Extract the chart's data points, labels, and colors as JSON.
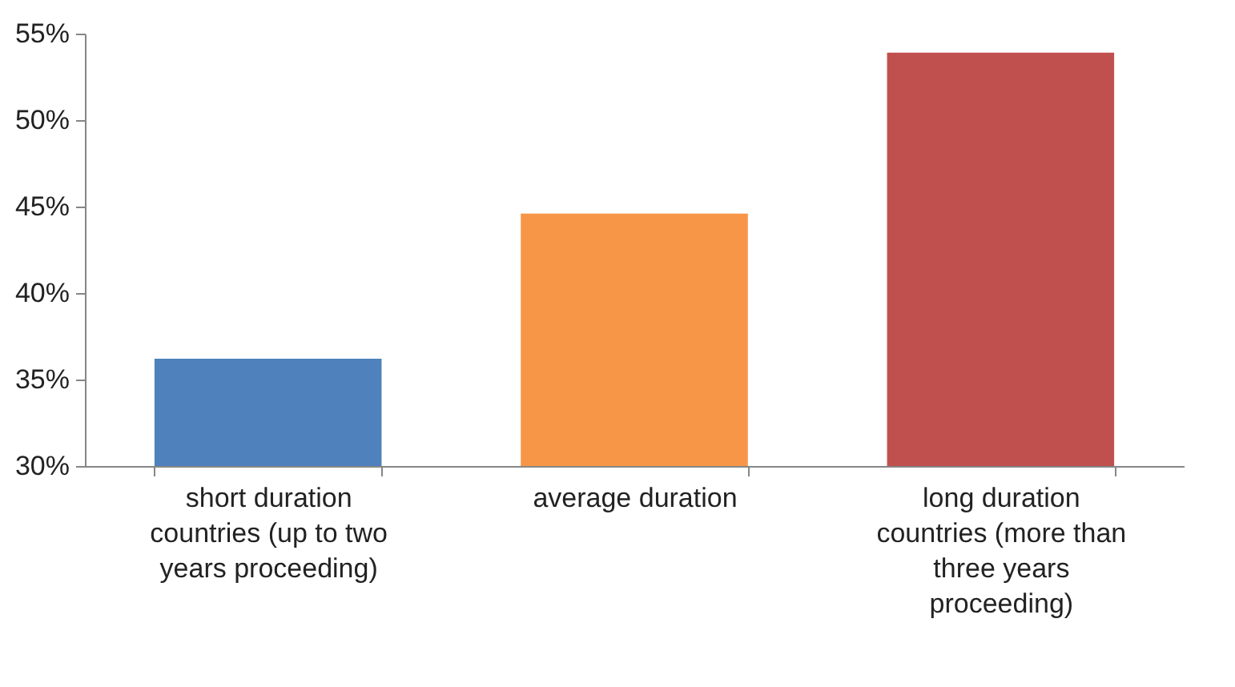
{
  "chart_data": {
    "type": "bar",
    "categories": [
      "short duration countries (up to two years proceeding)",
      "average duration",
      "long duration countries (more than three years proceeding)"
    ],
    "values": [
      36.2,
      44.6,
      53.9
    ],
    "colors": [
      "#4f81bd",
      "#f79646",
      "#c0504d"
    ],
    "ylim": [
      30,
      55
    ],
    "yticks": [
      {
        "value": 30,
        "label": "30%"
      },
      {
        "value": 35,
        "label": "35%"
      },
      {
        "value": 40,
        "label": "40%"
      },
      {
        "value": 45,
        "label": "45%"
      },
      {
        "value": 50,
        "label": "50%"
      },
      {
        "value": 55,
        "label": "55%"
      }
    ],
    "grid": false
  }
}
